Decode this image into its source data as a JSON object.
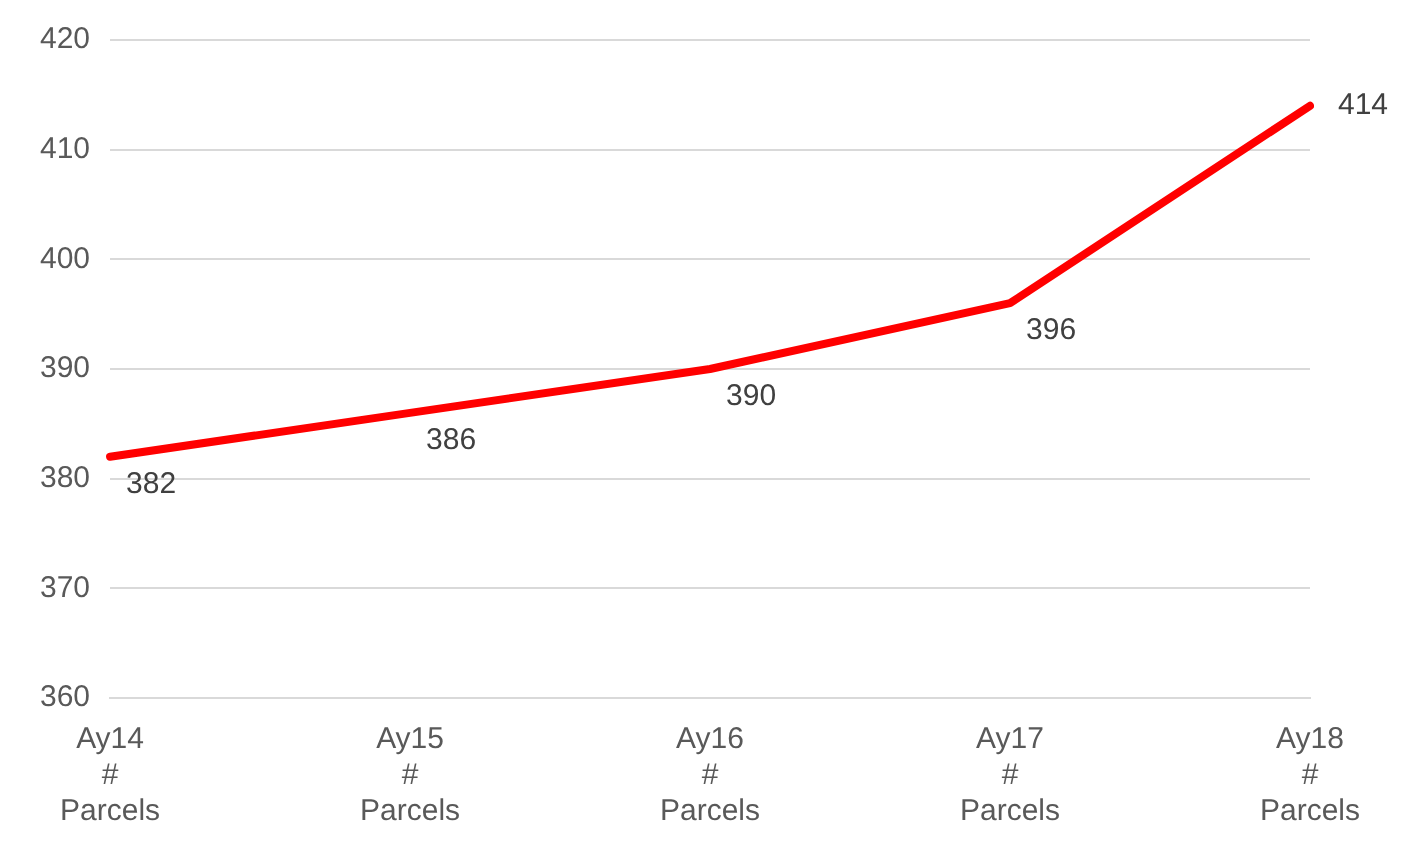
{
  "chart_data": {
    "type": "line",
    "categories": [
      "Ay14\n#\nParcels",
      "Ay15\n#\nParcels",
      "Ay16\n#\nParcels",
      "Ay17\n#\nParcels",
      "Ay18\n#\nParcels"
    ],
    "series": [
      {
        "color": "#ff0000",
        "values": [
          382,
          386,
          390,
          396,
          414
        ]
      }
    ],
    "ylim": [
      360,
      420
    ],
    "yticks": [
      360,
      370,
      380,
      390,
      400,
      410,
      420
    ],
    "grid": "y",
    "data_labels": true,
    "marker": "none",
    "line_style": "solid"
  }
}
